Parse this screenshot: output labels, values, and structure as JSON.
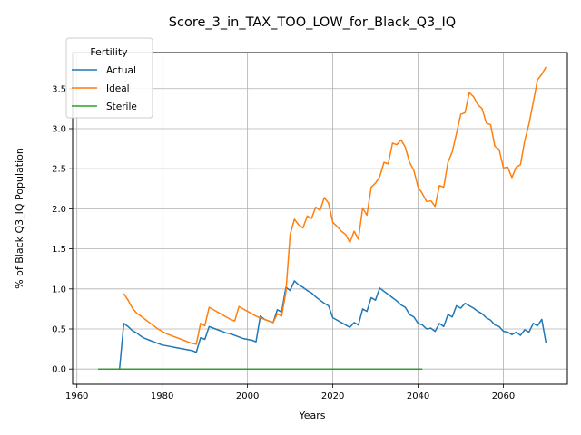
{
  "chart_data": {
    "type": "line",
    "title": "Score_3_in_TAX_TOO_LOW_for_Black_Q3_IQ",
    "xlabel": "Years",
    "ylabel": "% of Black Q3_IQ Population",
    "xlim": [
      1959,
      2075
    ],
    "ylim": [
      -0.19,
      3.95
    ],
    "xticks": [
      1960,
      1980,
      2000,
      2020,
      2040,
      2060
    ],
    "yticks": [
      0.0,
      0.5,
      1.0,
      1.5,
      2.0,
      2.5,
      3.0,
      3.5
    ],
    "grid": true,
    "legend": {
      "title": "Fertility",
      "placement": "top-left"
    },
    "series": [
      {
        "name": "Actual",
        "color": "#1f77b4",
        "points": [
          [
            1965,
            0.0
          ],
          [
            1966,
            0.0
          ],
          [
            1967,
            0.0
          ],
          [
            1968,
            0.0
          ],
          [
            1969,
            0.0
          ],
          [
            1970,
            0.0
          ],
          [
            1971,
            0.57
          ],
          [
            1972,
            0.53
          ],
          [
            1973,
            0.48
          ],
          [
            1974,
            0.45
          ],
          [
            1975,
            0.41
          ],
          [
            1976,
            0.38
          ],
          [
            1977,
            0.36
          ],
          [
            1978,
            0.34
          ],
          [
            1979,
            0.32
          ],
          [
            1980,
            0.3
          ],
          [
            1981,
            0.29
          ],
          [
            1982,
            0.28
          ],
          [
            1983,
            0.27
          ],
          [
            1984,
            0.26
          ],
          [
            1985,
            0.25
          ],
          [
            1986,
            0.24
          ],
          [
            1987,
            0.23
          ],
          [
            1988,
            0.21
          ],
          [
            1989,
            0.39
          ],
          [
            1990,
            0.37
          ],
          [
            1991,
            0.53
          ],
          [
            1992,
            0.51
          ],
          [
            1993,
            0.49
          ],
          [
            1994,
            0.47
          ],
          [
            1995,
            0.45
          ],
          [
            1996,
            0.44
          ],
          [
            1997,
            0.42
          ],
          [
            1998,
            0.4
          ],
          [
            1999,
            0.38
          ],
          [
            2000,
            0.37
          ],
          [
            2001,
            0.36
          ],
          [
            2002,
            0.34
          ],
          [
            2003,
            0.66
          ],
          [
            2004,
            0.62
          ],
          [
            2005,
            0.6
          ],
          [
            2006,
            0.58
          ],
          [
            2007,
            0.74
          ],
          [
            2008,
            0.71
          ],
          [
            2009,
            1.02
          ],
          [
            2010,
            0.98
          ],
          [
            2011,
            1.1
          ],
          [
            2012,
            1.05
          ],
          [
            2013,
            1.02
          ],
          [
            2014,
            0.98
          ],
          [
            2015,
            0.95
          ],
          [
            2016,
            0.9
          ],
          [
            2017,
            0.86
          ],
          [
            2018,
            0.82
          ],
          [
            2019,
            0.79
          ],
          [
            2020,
            0.64
          ],
          [
            2021,
            0.61
          ],
          [
            2022,
            0.58
          ],
          [
            2023,
            0.55
          ],
          [
            2024,
            0.52
          ],
          [
            2025,
            0.58
          ],
          [
            2026,
            0.55
          ],
          [
            2027,
            0.75
          ],
          [
            2028,
            0.72
          ],
          [
            2029,
            0.89
          ],
          [
            2030,
            0.86
          ],
          [
            2031,
            1.01
          ],
          [
            2032,
            0.97
          ],
          [
            2033,
            0.93
          ],
          [
            2034,
            0.89
          ],
          [
            2035,
            0.85
          ],
          [
            2036,
            0.8
          ],
          [
            2037,
            0.77
          ],
          [
            2038,
            0.68
          ],
          [
            2039,
            0.65
          ],
          [
            2040,
            0.57
          ],
          [
            2041,
            0.55
          ],
          [
            2042,
            0.5
          ],
          [
            2043,
            0.51
          ],
          [
            2044,
            0.47
          ],
          [
            2045,
            0.57
          ],
          [
            2046,
            0.53
          ],
          [
            2047,
            0.68
          ],
          [
            2048,
            0.65
          ],
          [
            2049,
            0.79
          ],
          [
            2050,
            0.76
          ],
          [
            2051,
            0.82
          ],
          [
            2052,
            0.79
          ],
          [
            2053,
            0.76
          ],
          [
            2054,
            0.72
          ],
          [
            2055,
            0.69
          ],
          [
            2056,
            0.64
          ],
          [
            2057,
            0.61
          ],
          [
            2058,
            0.55
          ],
          [
            2059,
            0.53
          ],
          [
            2060,
            0.47
          ],
          [
            2061,
            0.46
          ],
          [
            2062,
            0.43
          ],
          [
            2063,
            0.46
          ],
          [
            2064,
            0.42
          ],
          [
            2065,
            0.49
          ],
          [
            2066,
            0.46
          ],
          [
            2067,
            0.57
          ],
          [
            2068,
            0.54
          ],
          [
            2069,
            0.62
          ],
          [
            2070,
            0.32
          ]
        ]
      },
      {
        "name": "Ideal",
        "color": "#ff7f0e",
        "points": [
          [
            1971,
            0.94
          ],
          [
            1972,
            0.86
          ],
          [
            1973,
            0.76
          ],
          [
            1974,
            0.7
          ],
          [
            1975,
            0.66
          ],
          [
            1976,
            0.62
          ],
          [
            1977,
            0.58
          ],
          [
            1978,
            0.54
          ],
          [
            1979,
            0.5
          ],
          [
            1980,
            0.47
          ],
          [
            1981,
            0.44
          ],
          [
            1982,
            0.42
          ],
          [
            1983,
            0.4
          ],
          [
            1984,
            0.38
          ],
          [
            1985,
            0.36
          ],
          [
            1986,
            0.34
          ],
          [
            1987,
            0.32
          ],
          [
            1988,
            0.31
          ],
          [
            1989,
            0.57
          ],
          [
            1990,
            0.54
          ],
          [
            1991,
            0.77
          ],
          [
            1992,
            0.74
          ],
          [
            1993,
            0.71
          ],
          [
            1994,
            0.68
          ],
          [
            1995,
            0.65
          ],
          [
            1996,
            0.62
          ],
          [
            1997,
            0.6
          ],
          [
            1998,
            0.78
          ],
          [
            1999,
            0.75
          ],
          [
            2000,
            0.72
          ],
          [
            2001,
            0.69
          ],
          [
            2002,
            0.66
          ],
          [
            2003,
            0.64
          ],
          [
            2004,
            0.62
          ],
          [
            2005,
            0.6
          ],
          [
            2006,
            0.58
          ],
          [
            2007,
            0.69
          ],
          [
            2008,
            0.66
          ],
          [
            2009,
            0.96
          ],
          [
            2010,
            1.68
          ],
          [
            2011,
            1.87
          ],
          [
            2012,
            1.8
          ],
          [
            2013,
            1.76
          ],
          [
            2014,
            1.91
          ],
          [
            2015,
            1.88
          ],
          [
            2016,
            2.02
          ],
          [
            2017,
            1.98
          ],
          [
            2018,
            2.14
          ],
          [
            2019,
            2.07
          ],
          [
            2020,
            1.83
          ],
          [
            2021,
            1.78
          ],
          [
            2022,
            1.72
          ],
          [
            2023,
            1.68
          ],
          [
            2024,
            1.58
          ],
          [
            2025,
            1.72
          ],
          [
            2026,
            1.62
          ],
          [
            2027,
            2.01
          ],
          [
            2028,
            1.92
          ],
          [
            2029,
            2.27
          ],
          [
            2030,
            2.32
          ],
          [
            2031,
            2.4
          ],
          [
            2032,
            2.58
          ],
          [
            2033,
            2.56
          ],
          [
            2034,
            2.82
          ],
          [
            2035,
            2.8
          ],
          [
            2036,
            2.86
          ],
          [
            2037,
            2.77
          ],
          [
            2038,
            2.58
          ],
          [
            2039,
            2.48
          ],
          [
            2040,
            2.27
          ],
          [
            2041,
            2.19
          ],
          [
            2042,
            2.09
          ],
          [
            2043,
            2.1
          ],
          [
            2044,
            2.03
          ],
          [
            2045,
            2.29
          ],
          [
            2046,
            2.27
          ],
          [
            2047,
            2.58
          ],
          [
            2048,
            2.71
          ],
          [
            2049,
            2.94
          ],
          [
            2050,
            3.18
          ],
          [
            2051,
            3.2
          ],
          [
            2052,
            3.45
          ],
          [
            2053,
            3.4
          ],
          [
            2054,
            3.3
          ],
          [
            2055,
            3.25
          ],
          [
            2056,
            3.07
          ],
          [
            2057,
            3.05
          ],
          [
            2058,
            2.78
          ],
          [
            2059,
            2.74
          ],
          [
            2060,
            2.51
          ],
          [
            2061,
            2.52
          ],
          [
            2062,
            2.39
          ],
          [
            2063,
            2.52
          ],
          [
            2064,
            2.55
          ],
          [
            2065,
            2.85
          ],
          [
            2066,
            3.06
          ],
          [
            2067,
            3.33
          ],
          [
            2068,
            3.61
          ],
          [
            2069,
            3.68
          ],
          [
            2070,
            3.77
          ]
        ]
      },
      {
        "name": "Sterile",
        "color": "#2ca02c",
        "points": [
          [
            1965,
            0.0
          ],
          [
            2041,
            0.0
          ]
        ]
      }
    ]
  }
}
